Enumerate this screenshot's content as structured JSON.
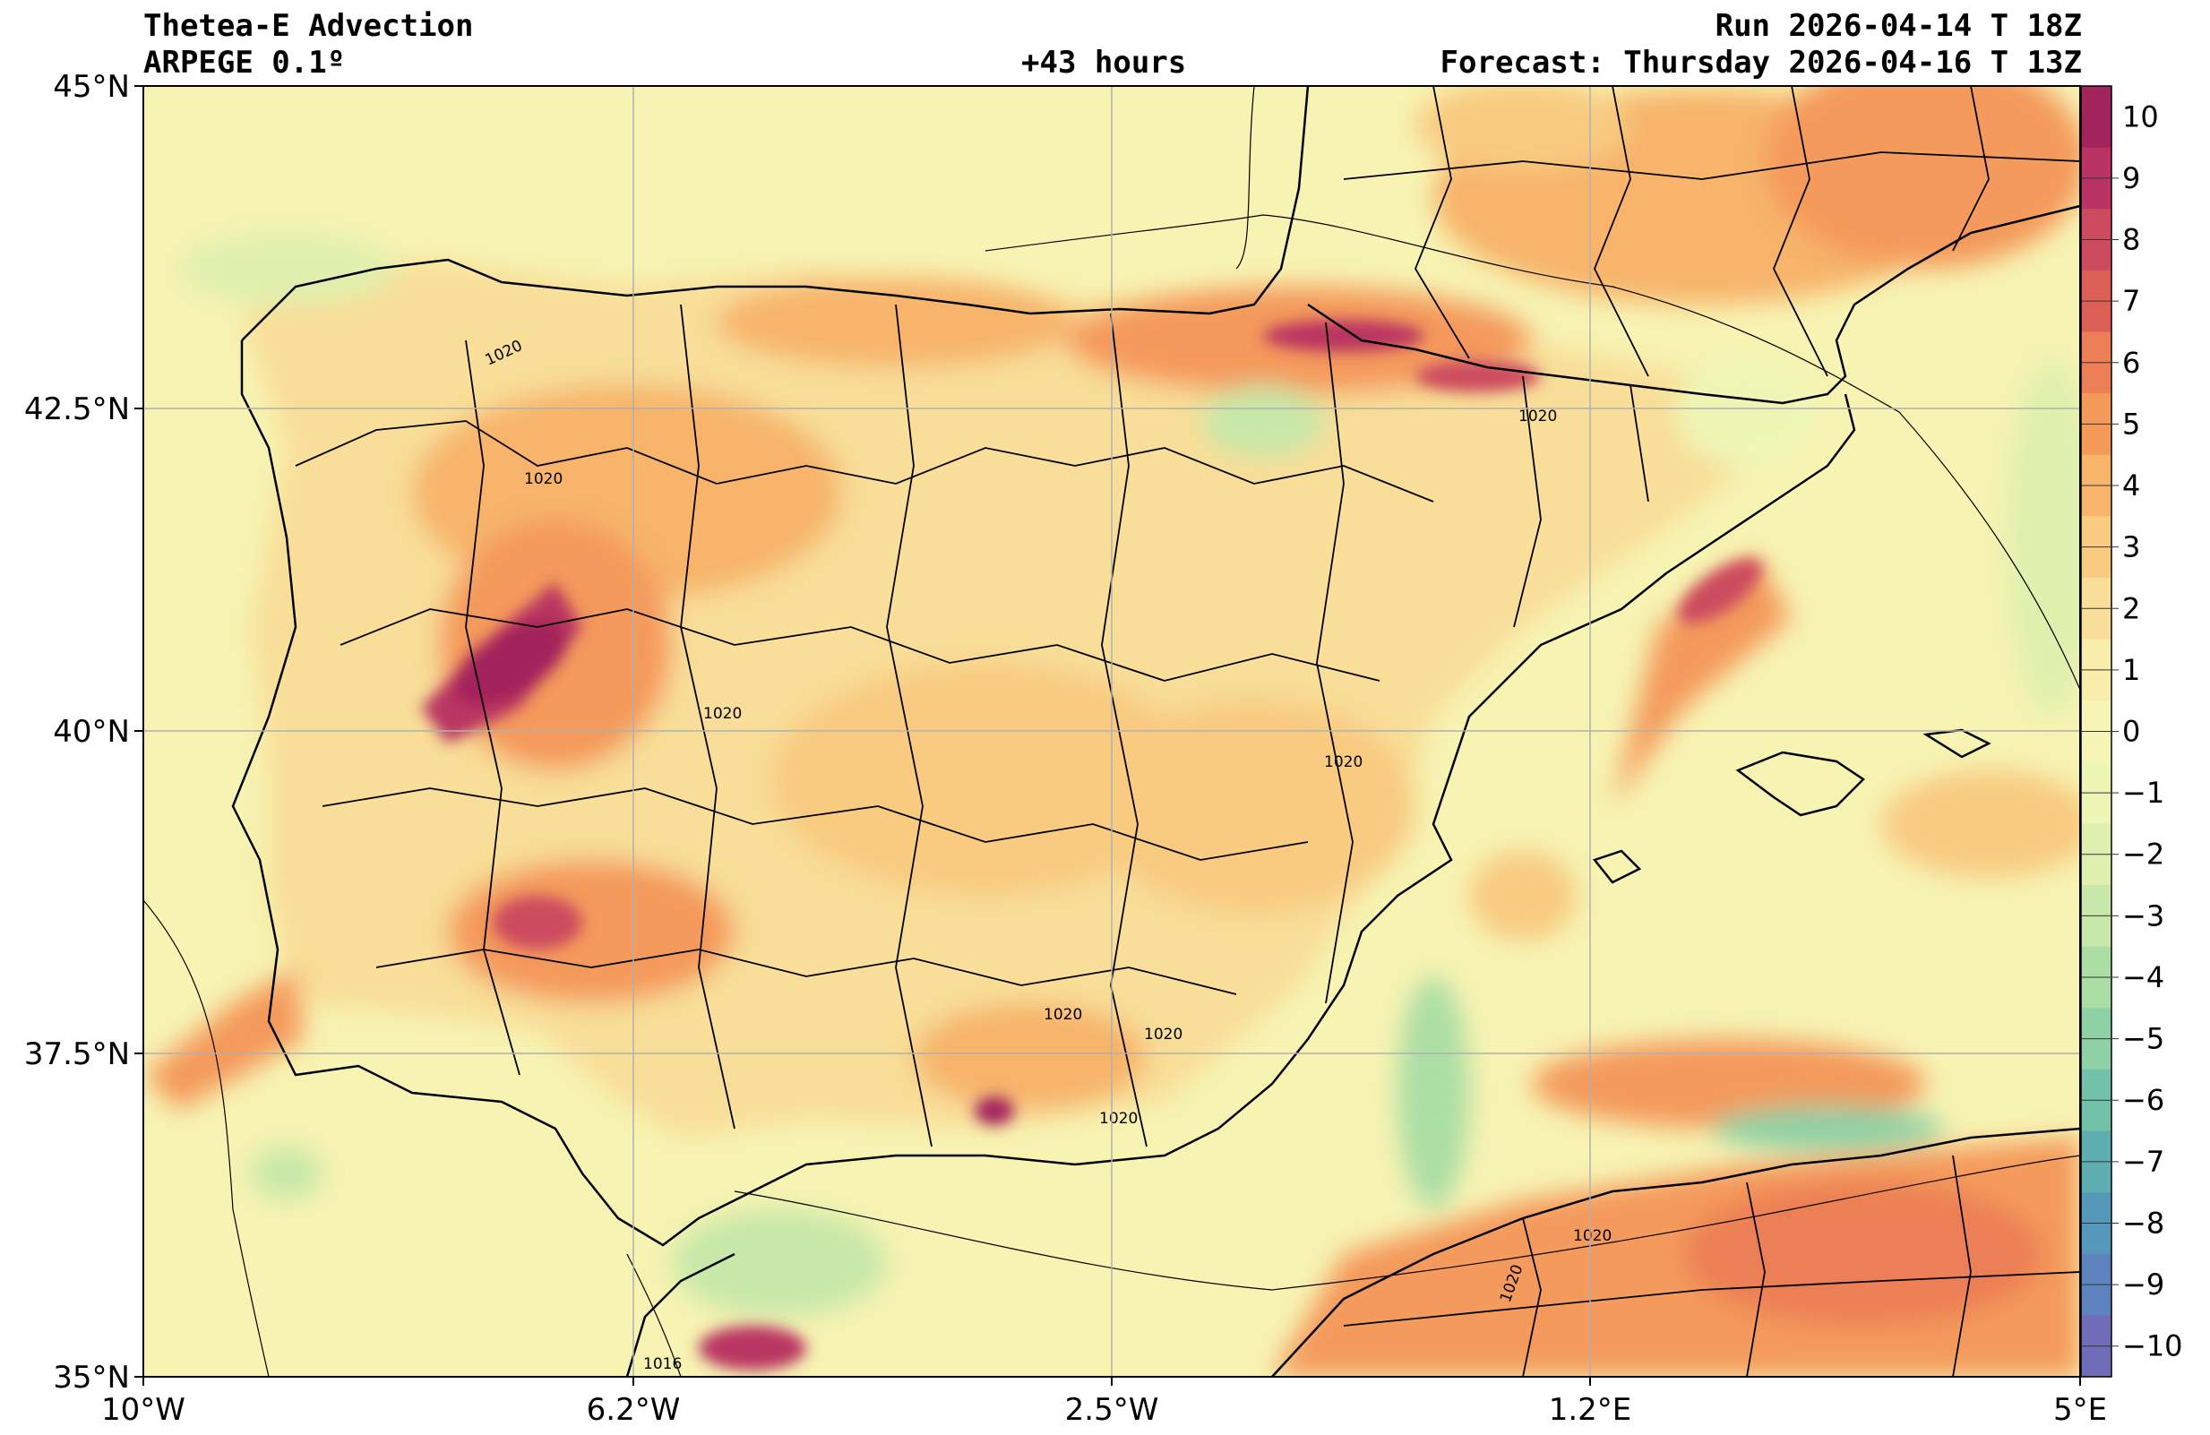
{
  "header": {
    "title": "Thetea-E Advection",
    "model": "ARPEGE 0.1º",
    "lead": "+43 hours",
    "run": "Run 2026-04-14 T 18Z",
    "forecast": "Forecast: Thursday 2026-04-16 T 13Z"
  },
  "map": {
    "lat_labels": [
      "45°N",
      "42.5°N",
      "40°N",
      "37.5°N",
      "35°N"
    ],
    "lon_labels": [
      "10°W",
      "6.2°W",
      "2.5°W",
      "1.2°E",
      "5°E"
    ],
    "isobar_labels": [
      "1020",
      "1020",
      "1020",
      "1020",
      "1020",
      "1020",
      "1020",
      "1020",
      "1020",
      "1020",
      "1016"
    ]
  },
  "colorbar": {
    "ticks": [
      "10",
      "9",
      "8",
      "7",
      "6",
      "5",
      "4",
      "3",
      "2",
      "1",
      "0",
      "−1",
      "−2",
      "−3",
      "−4",
      "−5",
      "−6",
      "−7",
      "−8",
      "−9",
      "−10"
    ],
    "colors": [
      "#a2245c",
      "#b93462",
      "#cc4b5e",
      "#dd6057",
      "#ec7f55",
      "#f49a5b",
      "#f7b46b",
      "#f8cb81",
      "#f8de98",
      "#f8edab",
      "#f7f5b5",
      "#eef6b6",
      "#dff0ae",
      "#c7e8a8",
      "#abdea4",
      "#8dd1a5",
      "#72c1a9",
      "#5eaeb1",
      "#5698b9",
      "#5d82bd",
      "#6f6cb8"
    ]
  },
  "chart_data": {
    "type": "heatmap",
    "title": "Thetea-E Advection",
    "xrange": [
      -10,
      5
    ],
    "yrange": [
      35,
      45
    ],
    "colorbar_range": [
      -10,
      10
    ]
  }
}
